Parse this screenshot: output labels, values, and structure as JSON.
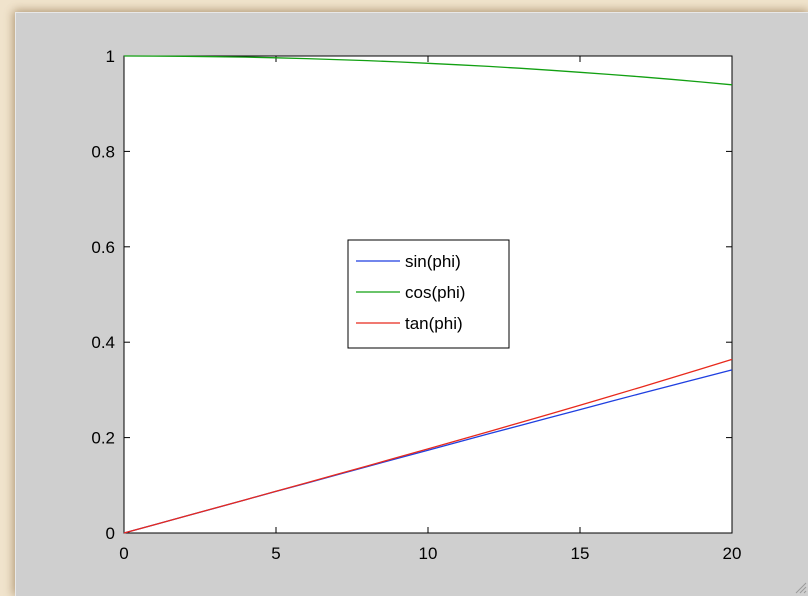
{
  "colors": {
    "window_bg": "#cfcfcf",
    "axes_bg": "#ffffff",
    "sin": "#1f3fe0",
    "cos": "#12a012",
    "tan": "#e8291c"
  },
  "chart_data": {
    "type": "line",
    "title": "",
    "xlabel": "",
    "ylabel": "",
    "xlim": [
      0,
      20
    ],
    "ylim": [
      0,
      1
    ],
    "xticks": [
      0,
      5,
      10,
      15,
      20
    ],
    "yticks": [
      0,
      0.2,
      0.4,
      0.6,
      0.8,
      1
    ],
    "xtick_labels": [
      "0",
      "5",
      "10",
      "15",
      "20"
    ],
    "ytick_labels": [
      "0",
      "0.2",
      "0.4",
      "0.6",
      "0.8",
      "1"
    ],
    "grid": false,
    "legend_position": "center",
    "x": [
      0,
      1,
      2,
      3,
      4,
      5,
      6,
      7,
      8,
      9,
      10,
      11,
      12,
      13,
      14,
      15,
      16,
      17,
      18,
      19,
      20
    ],
    "series": [
      {
        "name": "sin(phi)",
        "color": "#1f3fe0",
        "values": [
          0,
          0.0175,
          0.0349,
          0.0523,
          0.0698,
          0.0872,
          0.1045,
          0.1219,
          0.1392,
          0.1564,
          0.1736,
          0.1908,
          0.2079,
          0.225,
          0.2419,
          0.2588,
          0.2756,
          0.2924,
          0.309,
          0.3256,
          0.342
        ]
      },
      {
        "name": "cos(phi)",
        "color": "#12a012",
        "values": [
          1,
          0.9998,
          0.9994,
          0.9986,
          0.9976,
          0.9962,
          0.9945,
          0.9925,
          0.9903,
          0.9877,
          0.9848,
          0.9816,
          0.9781,
          0.9744,
          0.9703,
          0.9659,
          0.9613,
          0.9563,
          0.9511,
          0.9455,
          0.9397
        ]
      },
      {
        "name": "tan(phi)",
        "color": "#e8291c",
        "values": [
          0,
          0.0175,
          0.0349,
          0.0524,
          0.0699,
          0.0875,
          0.1051,
          0.1228,
          0.1405,
          0.1584,
          0.1763,
          0.1944,
          0.2126,
          0.2309,
          0.2493,
          0.2679,
          0.2867,
          0.3057,
          0.3249,
          0.3443,
          0.364
        ]
      }
    ]
  }
}
